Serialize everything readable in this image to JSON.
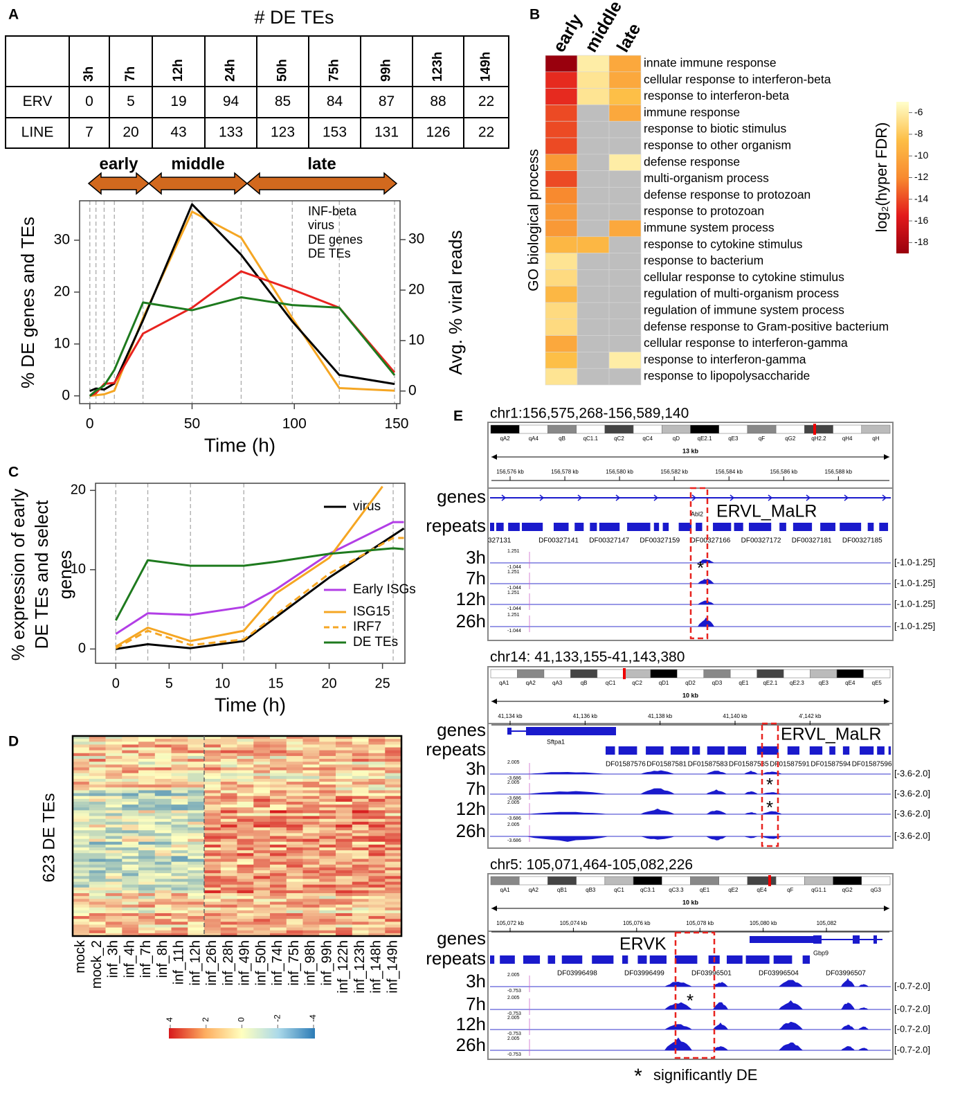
{
  "panel_labels": [
    "A",
    "B",
    "C",
    "D",
    "E"
  ],
  "table": {
    "title": "# DE TEs",
    "header": [
      "3h",
      "7h",
      "12h",
      "24h",
      "50h",
      "75h",
      "99h",
      "123h",
      "149h"
    ],
    "rows": [
      [
        "ERV",
        0,
        5,
        19,
        94,
        85,
        84,
        87,
        88,
        22
      ],
      [
        "LINE",
        7,
        20,
        43,
        133,
        123,
        153,
        131,
        126,
        22
      ]
    ]
  },
  "phases": [
    "early",
    "middle",
    "late"
  ],
  "chart_data": [
    {
      "type": "line",
      "xlabel": "Time (h)",
      "ylabel": "% DE genes and TEs",
      "y2label": "Avg. % viral reads",
      "xlim": [
        -5,
        151.7
      ],
      "ylim": [
        -1.5,
        37.6
      ],
      "y2lim": [
        -2.5,
        37.7
      ],
      "xticks": [
        0,
        50,
        100,
        150
      ],
      "yticks": [
        0,
        10,
        20,
        30
      ],
      "y2ticks": [
        0,
        10,
        20,
        30
      ],
      "vlines": [
        0,
        3,
        7,
        12,
        26,
        50,
        74,
        99,
        122,
        149
      ],
      "series": [
        {
          "name": "INF-beta",
          "color": "#f5a623",
          "x": [
            0,
            7,
            12,
            26,
            50,
            74,
            99,
            122,
            149
          ],
          "values": [
            0,
            0.3,
            1,
            15,
            35.5,
            30.5,
            15,
            1.5,
            1
          ]
        },
        {
          "name": "virus",
          "color": "#000000",
          "axis": "y2",
          "x": [
            0,
            3,
            7,
            12,
            26,
            50,
            74,
            99,
            122,
            149
          ],
          "values": [
            0,
            0.5,
            0.3,
            1.5,
            14,
            37,
            27,
            13.8,
            3.2,
            1.4
          ]
        },
        {
          "name": "DE genes",
          "color": "#e8231f",
          "x": [
            0,
            3,
            7,
            12,
            26,
            50,
            74,
            99,
            122,
            149
          ],
          "values": [
            0,
            0.5,
            2.3,
            2.5,
            12,
            17,
            24,
            20.5,
            17,
            4.5
          ]
        },
        {
          "name": "DE TEs",
          "color": "#1e7a1e",
          "x": [
            0,
            3,
            7,
            12,
            26,
            50,
            74,
            99,
            122,
            149
          ],
          "values": [
            0,
            1,
            2,
            5,
            18,
            16.5,
            19,
            17.5,
            17,
            4
          ]
        }
      ]
    },
    {
      "type": "line",
      "xlabel": "Time (h)",
      "ylabel": [
        "% expression of early",
        "DE  TEs and select",
        "genes"
      ],
      "xlim": [
        -1.9,
        27.1
      ],
      "ylim": [
        -1.8,
        20.9
      ],
      "xticks": [
        0,
        5,
        10,
        15,
        20,
        25
      ],
      "yticks": [
        0,
        10,
        20
      ],
      "vlines": [
        0,
        3,
        7,
        12,
        26
      ],
      "series": [
        {
          "name": "virus",
          "color": "#000000",
          "x": [
            0,
            3,
            7,
            12,
            20,
            27
          ],
          "values": [
            0,
            0.6,
            0.1,
            1,
            9,
            15.2
          ]
        },
        {
          "name": "Early ISGs",
          "color": "#b23ee6",
          "x": [
            0,
            3,
            7,
            12,
            15,
            20,
            26,
            27
          ],
          "values": [
            1.9,
            4.5,
            4.3,
            5.3,
            7.5,
            12,
            16,
            16
          ]
        },
        {
          "name": "ISG15",
          "color": "#f5a623",
          "x": [
            0,
            3,
            7,
            12,
            15,
            20,
            25
          ],
          "values": [
            0.3,
            2.7,
            1,
            2.3,
            7,
            11.5,
            20.5
          ]
        },
        {
          "name": "IRF7",
          "color": "#f5a623",
          "dash": true,
          "x": [
            0,
            3,
            7,
            12,
            20,
            26,
            27
          ],
          "values": [
            0.1,
            2.3,
            0.5,
            1.2,
            9.5,
            14,
            14
          ]
        },
        {
          "name": "DE TEs",
          "color": "#1e7a1e",
          "x": [
            0,
            3,
            7,
            12,
            15,
            20,
            26,
            27
          ],
          "values": [
            3.6,
            11.2,
            10.5,
            10.5,
            11,
            12,
            12.7,
            12.6
          ]
        }
      ]
    },
    {
      "type": "heatmap",
      "ylabel": "GO biological process",
      "legend_title": "log₂(hyper FDR)",
      "columns": [
        "early",
        "middle",
        "late"
      ],
      "categories": [
        "innate immune response",
        "cellular response to interferon-beta",
        "response to interferon-beta",
        "immune response",
        "response to biotic stimulus",
        "response to other organism",
        "defense response",
        "multi-organism process",
        "defense response to protozoan",
        "response to protozoan",
        "immune system process",
        "response to cytokine stimulus",
        "response to bacterium",
        "cellular response to cytokine stimulus",
        "regulation of multi-organism process",
        "regulation of immune system process",
        "defense response to Gram-positive bacterium",
        "cellular response to interferon-gamma",
        "response to interferon-gamma",
        "response to lipopolysaccharide"
      ],
      "values": [
        [
          -19,
          -6,
          -10
        ],
        [
          -15,
          -6.5,
          -10
        ],
        [
          -15,
          -6.5,
          -8.5
        ],
        [
          -14,
          null,
          -10
        ],
        [
          -14,
          null,
          null
        ],
        [
          -14,
          null,
          null
        ],
        [
          -11,
          null,
          -6
        ],
        [
          -14,
          null,
          null
        ],
        [
          -12,
          null,
          null
        ],
        [
          -11,
          null,
          null
        ],
        [
          -11,
          null,
          -10
        ],
        [
          -9,
          -9,
          null
        ],
        [
          -6.5,
          null,
          null
        ],
        [
          -7,
          null,
          null
        ],
        [
          -9,
          null,
          null
        ],
        [
          -7,
          null,
          null
        ],
        [
          -7,
          null,
          null
        ],
        [
          -10,
          null,
          null
        ],
        [
          -8.5,
          null,
          -6
        ],
        [
          -6.5,
          null,
          null
        ]
      ],
      "clim": [
        -19,
        -5
      ],
      "colors": [
        "#99000d",
        "#e31a1c",
        "#f88a2f",
        "#fdbf47",
        "#ffffcc"
      ],
      "null_color": "#bebebe",
      "cticks": [
        -6,
        -8,
        -10,
        -12,
        -14,
        -16,
        -18
      ]
    }
  ],
  "panel_d": {
    "ylabel": "623 DE TEs",
    "columns": [
      "mock",
      "mock_2",
      "inf_3h",
      "inf_4h",
      "inf_7h",
      "inf_8h",
      "inf_11h",
      "inf_12h",
      "inf_26h",
      "inf_28h",
      "inf_49h",
      "inf_50h",
      "inf_74h",
      "inf_75h",
      "inf_98h",
      "inf_99h",
      "inf_122h",
      "inf_123h",
      "inf_148h",
      "inf_149h"
    ],
    "colorbar_ticks": [
      4,
      2,
      0,
      -2,
      -4
    ]
  },
  "browser": {
    "genes_label": "genes",
    "repeats_label": "repeats",
    "samples": [
      "3h",
      "7h",
      "12h",
      "26h"
    ],
    "star": "*",
    "footnote": "significantly DE",
    "blocks": [
      {
        "locus": "chr1:156,575,268-156,589,140",
        "bands": [
          "qA2",
          "qA4",
          "qB",
          "qC1.1",
          "qC2",
          "qC4",
          "qD",
          "qE2.1",
          "qE3",
          "qF",
          "qG2",
          "qH2.2",
          "qH4",
          "qH"
        ],
        "scale": "13 kb",
        "kb": [
          "156,576 kb",
          "156,578 kb",
          "156,580 kb",
          "156,582 kb",
          "156,584 kb",
          "156,586 kb",
          "156,588 kb"
        ],
        "gene": "Abl2",
        "repeats": [
          "327131",
          "DF00327141",
          "DF00327147",
          "DF00327159",
          "DF00327166",
          "DF00327172",
          "DF00327181",
          "DF00327185"
        ],
        "te": "ERVL_MaLR",
        "track_scale": [
          "1.251",
          "-1.044"
        ],
        "range": "[-1.0-1.25]"
      },
      {
        "locus": "chr14: 41,133,155-41,143,380",
        "bands": [
          "qA1",
          "qA2",
          "qA3",
          "qB",
          "qC1",
          "qC2",
          "qD1",
          "qD2",
          "qD3",
          "qE1",
          "qE2.1",
          "qE2.3",
          "qE3",
          "qE4",
          "qE5"
        ],
        "scale": "10 kb",
        "kb": [
          "41,134 kb",
          "41,136 kb",
          "41,138 kb",
          "41,140 kb",
          "4',142 kb"
        ],
        "gene": "Sftpa1",
        "repeats": [
          "DF01587576",
          "DF01587581",
          "DF01587583",
          "DF01587585",
          "DF01587591",
          "DF01587594",
          "DF01587596"
        ],
        "te": "ERVL_MaLR",
        "track_scale": [
          "2.005",
          "-3.686"
        ],
        "range": "[-3.6-2.0]"
      },
      {
        "locus": "chr5: 105,071,464-105,082,226",
        "bands": [
          "qA1",
          "qA2",
          "qB1",
          "qB3",
          "qC1",
          "qC3.1",
          "qC3.3",
          "qE1",
          "qE2",
          "qE4",
          "qF",
          "qG1.1",
          "qG2",
          "qG3"
        ],
        "scale": "10 kb",
        "kb": [
          "105,072 kb",
          "105,074 kb",
          "105,076 kb",
          "105,078 kb",
          "105,080 kb",
          "105,082"
        ],
        "gene": "Gbp9",
        "repeats": [
          "DF03996498",
          "DF03996499",
          "DF03996501",
          "DF03996504",
          "DF03996507"
        ],
        "te": "ERVK",
        "track_scale": [
          "2.005",
          "-0.753"
        ],
        "range": "[-0.7-2.0]"
      }
    ]
  }
}
